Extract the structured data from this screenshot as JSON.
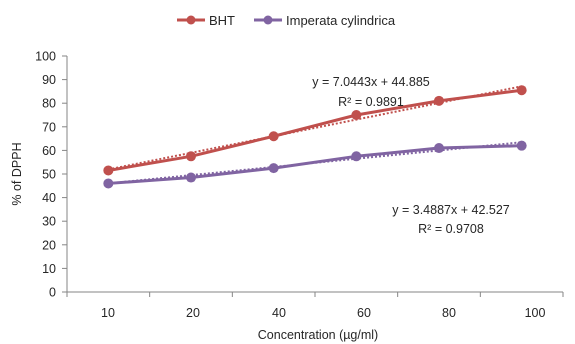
{
  "chart_data": {
    "type": "line",
    "title": "",
    "xlabel": "Concentration (µg/ml)",
    "ylabel": "% of DPPH",
    "categories": [
      "10",
      "20",
      "40",
      "60",
      "80",
      "100"
    ],
    "ylim": [
      0,
      100
    ],
    "yticks": [
      "0",
      "10",
      "20",
      "30",
      "40",
      "50",
      "60",
      "70",
      "80",
      "90",
      "100"
    ],
    "grid": false,
    "legend_position": "top-center",
    "series": [
      {
        "name": "BHT",
        "color": "#c0504d",
        "values": [
          51.5,
          57.5,
          66,
          75,
          81,
          85.5
        ],
        "trendline": {
          "style": "dotted",
          "equation": "y = 7.0443x + 44.885",
          "r_squared": "R² = 0.9891",
          "slope": 7.0443,
          "intercept": 44.885
        }
      },
      {
        "name": "Imperata cylindrica",
        "color": "#8064a2",
        "values": [
          46,
          48.5,
          52.5,
          57.5,
          61,
          62
        ],
        "trendline": {
          "style": "dotted",
          "equation": "y = 3.4887x + 42.527",
          "r_squared": "R² = 0.9708",
          "slope": 3.4887,
          "intercept": 42.527
        }
      }
    ]
  }
}
